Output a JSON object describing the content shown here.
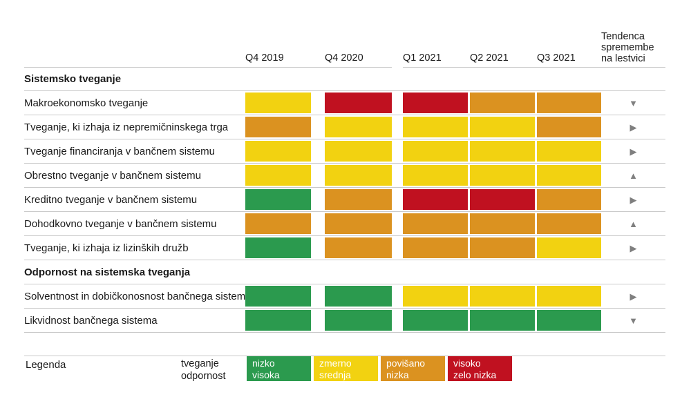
{
  "colors": {
    "green": "#2b9a4e",
    "yellow": "#f2d211",
    "orange": "#db9220",
    "red": "#c01120",
    "arrow": "#7f7f7f",
    "line": "#c9c9c9"
  },
  "trend_glyphs": {
    "up": "▲",
    "down": "▼",
    "right": "▶"
  },
  "chart_data": {
    "type": "heatmap",
    "columns": [
      "Q4 2019",
      "Q4 2020",
      "Q1 2021",
      "Q2 2021",
      "Q3 2021"
    ],
    "trend_header": "Tendenca spremembe na lestvici",
    "trend_header_lines": [
      "Tendenca",
      "spremembe",
      "na lestvici"
    ],
    "value_scale": [
      "green",
      "yellow",
      "orange",
      "red"
    ],
    "sections": [
      {
        "title": "Sistemsko tveganje",
        "rows": [
          {
            "label": "Makroekonomsko tveganje",
            "values": [
              "yellow",
              "red",
              "red",
              "orange",
              "orange"
            ],
            "trend": "down"
          },
          {
            "label": "Tveganje, ki izhaja iz nepremičninskega trga",
            "values": [
              "orange",
              "yellow",
              "yellow",
              "yellow",
              "orange"
            ],
            "trend": "right"
          },
          {
            "label": "Tveganje financiranja v bančnem sistemu",
            "values": [
              "yellow",
              "yellow",
              "yellow",
              "yellow",
              "yellow"
            ],
            "trend": "right"
          },
          {
            "label": "Obrestno tveganje v bančnem sistemu",
            "values": [
              "yellow",
              "yellow",
              "yellow",
              "yellow",
              "yellow"
            ],
            "trend": "up"
          },
          {
            "label": "Kreditno tveganje v bančnem sistemu",
            "values": [
              "green",
              "orange",
              "red",
              "red",
              "orange"
            ],
            "trend": "right"
          },
          {
            "label": "Dohodkovno tveganje v bančnem sistemu",
            "values": [
              "orange",
              "orange",
              "orange",
              "orange",
              "orange"
            ],
            "trend": "up"
          },
          {
            "label": "Tveganje, ki izhaja iz lizinških družb",
            "values": [
              "green",
              "orange",
              "orange",
              "orange",
              "yellow"
            ],
            "trend": "right"
          }
        ]
      },
      {
        "title": "Odpornost na sistemska tveganja",
        "rows": [
          {
            "label": "Solventnost in dobičkonosnost bančnega sistema",
            "values": [
              "green",
              "green",
              "yellow",
              "yellow",
              "yellow"
            ],
            "trend": "right"
          },
          {
            "label": "Likvidnost bančnega sistema",
            "values": [
              "green",
              "green",
              "green",
              "green",
              "green"
            ],
            "trend": "down"
          }
        ]
      }
    ]
  },
  "legend": {
    "title": "Legenda",
    "category_labels": [
      "tveganje",
      "odpornost"
    ],
    "items": [
      {
        "color": "green",
        "lines": [
          "nizko",
          "visoka"
        ]
      },
      {
        "color": "yellow",
        "lines": [
          "zmerno",
          "srednja"
        ]
      },
      {
        "color": "orange",
        "lines": [
          "povišano",
          "nizka"
        ]
      },
      {
        "color": "red",
        "lines": [
          "visoko",
          "zelo nizka"
        ]
      }
    ]
  }
}
